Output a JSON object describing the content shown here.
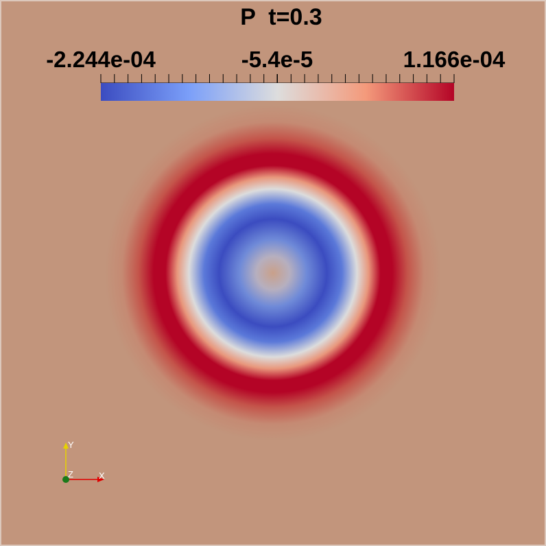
{
  "title": "P  t=0.3",
  "colorbar": {
    "labels": [
      "-2.244e-04",
      "-5.4e-5",
      "1.166e-04"
    ]
  },
  "orientation_axes": {
    "y": "Y",
    "z": "Z",
    "x": "X"
  }
}
